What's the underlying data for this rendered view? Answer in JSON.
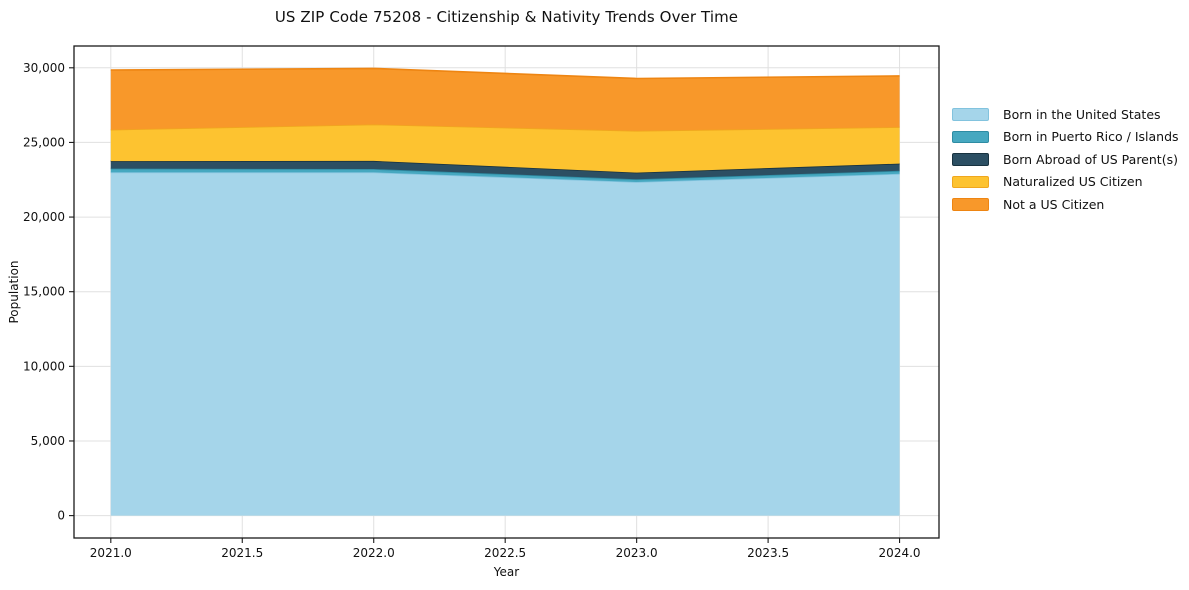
{
  "figure": {
    "title": "US ZIP Code 75208 - Citizenship & Nativity Trends Over Time"
  },
  "chart_data": {
    "type": "area",
    "stacked": true,
    "title": "US ZIP Code 75208 - Citizenship & Nativity Trends Over Time",
    "xlabel": "Year",
    "ylabel": "Population",
    "x": [
      2021,
      2022,
      2023,
      2024
    ],
    "series": [
      {
        "name": "Born in the United States",
        "values": [
          23000,
          23000,
          22350,
          22900
        ],
        "color": "#a5d5ea",
        "edge_color": "#82c3de"
      },
      {
        "name": "Born in Puerto Rico / Islands",
        "values": [
          250,
          220,
          180,
          200
        ],
        "color": "#46a8c0",
        "edge_color": "#2e8ca3"
      },
      {
        "name": "Born Abroad of US Parent(s)",
        "values": [
          500,
          540,
          450,
          480
        ],
        "color": "#2c4f63",
        "edge_color": "#18323f"
      },
      {
        "name": "Naturalized US Citizen",
        "values": [
          2100,
          2450,
          2800,
          2450
        ],
        "color": "#fdc330",
        "edge_color": "#f0a71e"
      },
      {
        "name": "Not a US Citizen",
        "values": [
          4000,
          3750,
          3500,
          3430
        ],
        "color": "#f8982a",
        "edge_color": "#ee8512"
      }
    ],
    "totals": [
      29850,
      29960,
      29280,
      29460
    ],
    "xlim": [
      2020.86,
      2024.15
    ],
    "ylim": [
      -1500,
      31460
    ],
    "xticks": {
      "values": [
        2021,
        2021.5,
        2022,
        2022.5,
        2023,
        2023.5,
        2024
      ],
      "labels": [
        "2021.0",
        "2021.5",
        "2022.0",
        "2022.5",
        "2023.0",
        "2023.5",
        "2024.0"
      ]
    },
    "yticks": {
      "values": [
        0,
        5000,
        10000,
        15000,
        20000,
        25000,
        30000
      ],
      "labels": [
        "0",
        "5,000",
        "10,000",
        "15,000",
        "20,000",
        "25,000",
        "30,000"
      ]
    },
    "grid": true,
    "legend_position": "right-outside"
  },
  "colors": {
    "background": "#ffffff",
    "grid": "#e0e0e0",
    "spine": "#1a1a1a",
    "text": "#111111"
  }
}
